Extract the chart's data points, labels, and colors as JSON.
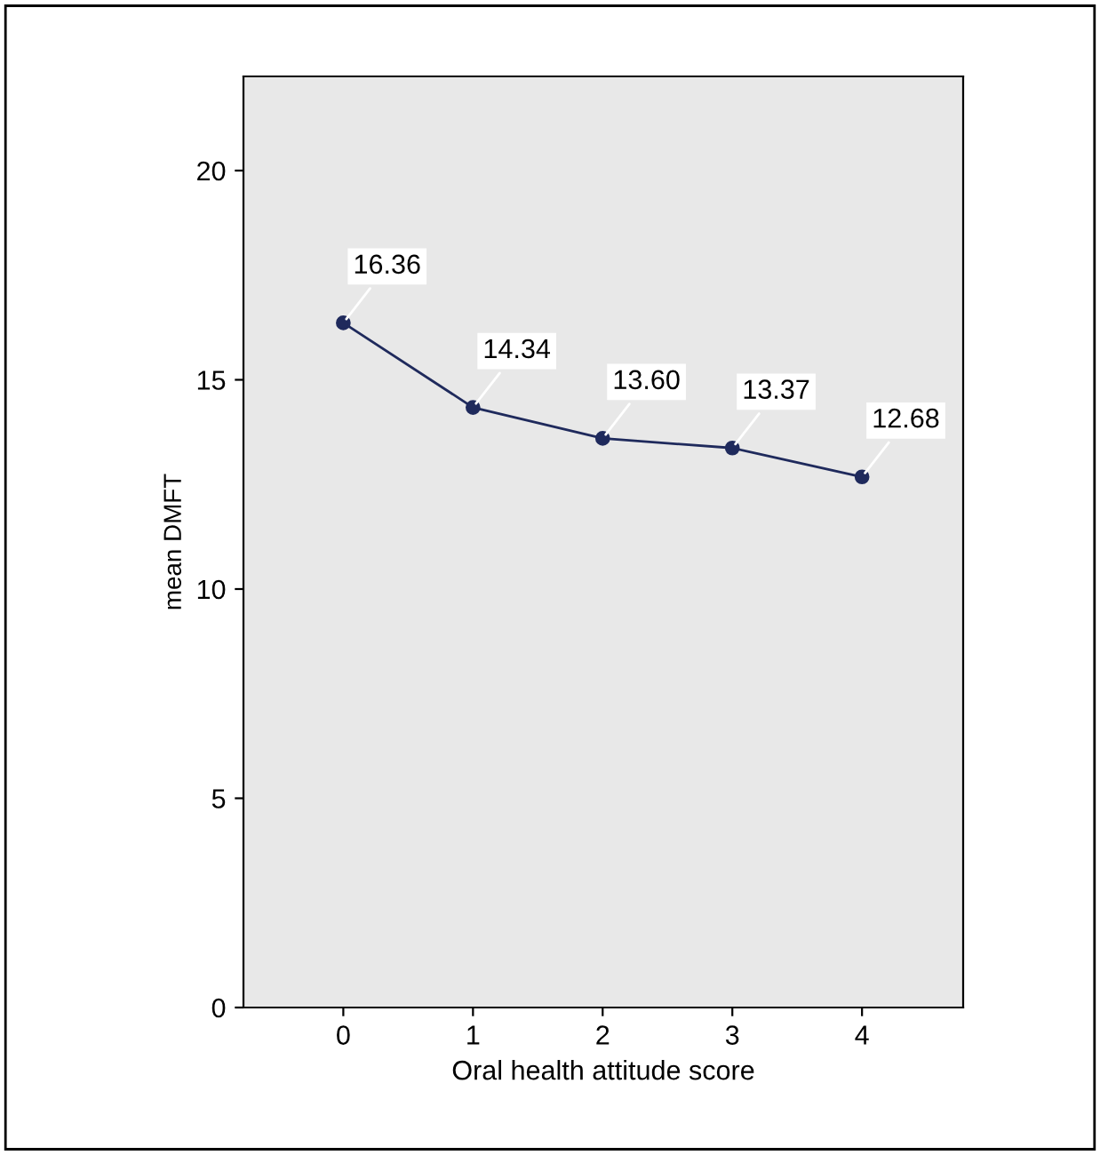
{
  "chart_data": {
    "type": "line",
    "xlabel": "Oral health attitude score",
    "ylabel": "mean DMFT",
    "x": [
      0,
      1,
      2,
      3,
      4
    ],
    "series": [
      {
        "color": "#1f2a5c",
        "values": [
          16.36,
          14.34,
          13.6,
          13.37,
          12.68
        ]
      }
    ],
    "value_labels": [
      "16.36",
      "14.34",
      "13.60",
      "13.37",
      "12.68"
    ],
    "xlim": [
      -0.77,
      4.78
    ],
    "xticks": [
      0,
      1,
      2,
      3,
      4
    ],
    "ylim": [
      0,
      22.25
    ],
    "yticks": [
      0,
      5,
      10,
      15,
      20
    ],
    "marker": "circle",
    "line_style": "solid",
    "grid": false,
    "legend": false
  }
}
